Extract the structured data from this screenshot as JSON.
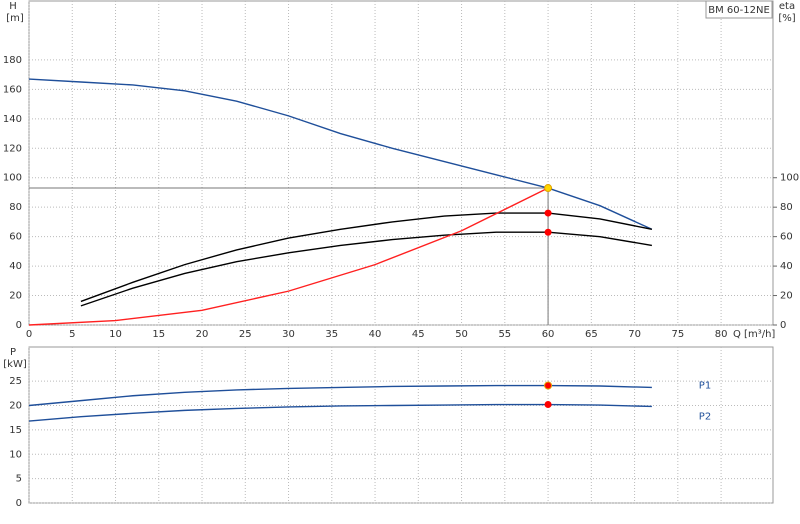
{
  "chart_data": [
    {
      "type": "line",
      "label_box": "BM 60-12NE",
      "y_label": "H",
      "y_unit": "[m]",
      "y2_label": "eta",
      "y2_unit": "[%]",
      "x_label": "Q [m³/h]",
      "xlim": [
        0,
        86
      ],
      "xticks": [
        0,
        5,
        10,
        15,
        20,
        25,
        30,
        35,
        40,
        45,
        50,
        55,
        60,
        65,
        70,
        75,
        80
      ],
      "ylim": [
        0,
        220
      ],
      "yticks": [
        0,
        20,
        40,
        60,
        80,
        100,
        120,
        140,
        160,
        180
      ],
      "y2lim": [
        0,
        220
      ],
      "y2ticks": [
        0,
        20,
        40,
        60,
        80,
        100
      ],
      "grid": true,
      "series": [
        {
          "color": "#1f4f9a",
          "x": [
            0,
            6,
            12,
            18,
            24,
            30,
            36,
            42,
            48,
            54,
            60,
            66,
            72
          ],
          "values": [
            167,
            165,
            163,
            159,
            152,
            142,
            130,
            120,
            111,
            102,
            93,
            81,
            65
          ]
        },
        {
          "color": "#000000",
          "axis": "y2",
          "x": [
            6,
            12,
            18,
            24,
            30,
            36,
            42,
            48,
            54,
            60,
            66,
            72
          ],
          "values": [
            16,
            29,
            41,
            51,
            59,
            65,
            70,
            74,
            76,
            76,
            72,
            65
          ]
        },
        {
          "color": "#000000",
          "axis": "y2",
          "x": [
            6,
            12,
            18,
            24,
            30,
            36,
            42,
            48,
            54,
            60,
            66,
            72
          ],
          "values": [
            13,
            25,
            35,
            43,
            49,
            54,
            58,
            61,
            63,
            63,
            60,
            54
          ]
        },
        {
          "color": "#ff2020",
          "x": [
            0,
            10,
            20,
            30,
            40,
            50,
            60
          ],
          "values": [
            0,
            3,
            10,
            23,
            41,
            64,
            93
          ]
        }
      ],
      "duty_point": {
        "x": 60,
        "values": [
          93,
          76,
          63
        ],
        "colors": [
          "#ffd700",
          "#ff0000",
          "#ff0000"
        ]
      }
    },
    {
      "type": "line",
      "y_label": "P",
      "y_unit": "[kW]",
      "xlim": [
        0,
        86
      ],
      "ylim": [
        0,
        32
      ],
      "yticks": [
        0,
        5,
        10,
        15,
        20,
        25
      ],
      "grid": true,
      "series": [
        {
          "name": "P1",
          "color": "#1f4f9a",
          "x": [
            0,
            6,
            12,
            18,
            24,
            30,
            36,
            42,
            48,
            54,
            60,
            66,
            72
          ],
          "values": [
            20,
            21,
            22,
            22.7,
            23.2,
            23.5,
            23.7,
            23.9,
            24,
            24.1,
            24.1,
            24,
            23.7
          ]
        },
        {
          "name": "P2",
          "color": "#1f4f9a",
          "x": [
            0,
            6,
            12,
            18,
            24,
            30,
            36,
            42,
            48,
            54,
            60,
            66,
            72
          ],
          "values": [
            16.8,
            17.7,
            18.4,
            19,
            19.4,
            19.7,
            19.9,
            20,
            20.1,
            20.2,
            20.2,
            20.1,
            19.8
          ]
        }
      ],
      "duty_point": {
        "x": 60,
        "values": [
          24.1,
          20.2
        ],
        "colors": [
          "#ff0000",
          "#ff0000"
        ]
      }
    }
  ]
}
